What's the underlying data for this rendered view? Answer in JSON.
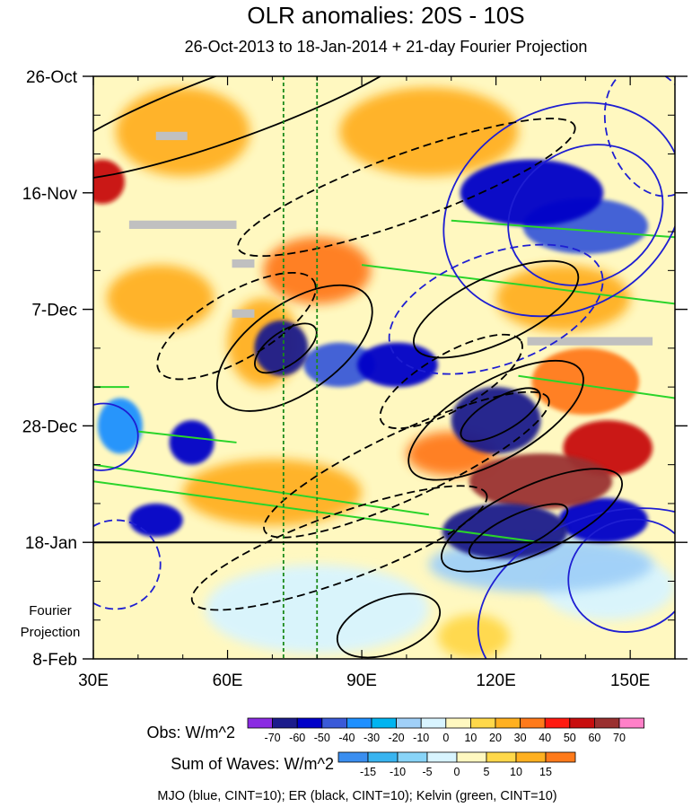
{
  "chart_data": {
    "type": "heatmap",
    "title": "OLR anomalies: 20S - 10S",
    "subtitle": "26-Oct-2013 to 18-Jan-2014 + 21-day Fourier Projection",
    "x_axis": {
      "range": [
        30,
        160
      ],
      "unit": "longitude (degrees E)",
      "ticks": [
        30,
        60,
        90,
        120,
        150
      ],
      "tick_labels": [
        "30E",
        "60E",
        "90E",
        "120E",
        "150E"
      ]
    },
    "y_axis": {
      "range_days": [
        0,
        105
      ],
      "start": "26-Oct-2013",
      "ticks_days": [
        0,
        21,
        42,
        63,
        84,
        105
      ],
      "tick_labels": [
        "26-Oct",
        "16-Nov",
        "7-Dec",
        "28-Dec",
        "18-Jan",
        "8-Feb"
      ],
      "projection_start_day": 84
    },
    "projection_label_lines": [
      "Fourier",
      "Projection"
    ],
    "reference_longitudes": [
      72.5,
      80
    ],
    "obs_colorbar": {
      "label": "Obs: W/m^2",
      "levels": [
        -70,
        -60,
        -50,
        -40,
        -30,
        -20,
        -10,
        0,
        10,
        20,
        30,
        40,
        50,
        60,
        70
      ],
      "level_labels": [
        "-70",
        "-60",
        "-50",
        "-40",
        "-30",
        "-20",
        "-10",
        "0",
        "10",
        "20",
        "30",
        "40",
        "50",
        "60",
        "70"
      ],
      "colors": [
        "#8a2be2",
        "#1c1c8c",
        "#0000c8",
        "#3a5ad8",
        "#1e90ff",
        "#00b4f0",
        "#a0d0f8",
        "#d8f4ff",
        "#fff8c0",
        "#ffd84a",
        "#ffb020",
        "#ff7a1a",
        "#ff1a10",
        "#c80e0e",
        "#9a3030",
        "#ff80c8"
      ]
    },
    "waves_colorbar": {
      "label": "Sum of Waves: W/m^2",
      "levels": [
        -15,
        -10,
        -5,
        0,
        5,
        10,
        15
      ],
      "level_labels": [
        "-15",
        "-10",
        "-5",
        "0",
        "5",
        "10",
        "15"
      ],
      "colors": [
        "#3a8ef0",
        "#38b4f0",
        "#88d4f8",
        "#d8f4ff",
        "#fff8c0",
        "#ffd84a",
        "#ffb020",
        "#ff7a1a"
      ]
    },
    "contour_legend": "MJO (blue, CINT=10); ER (black, CINT=10); Kelvin (green, CINT=10)",
    "series_colors": {
      "mjo": "#1e1ed2",
      "er": "#000000",
      "kelvin": "#2ad42a"
    },
    "missing_data_color": "#c0c0c0",
    "anomaly_features": [
      {
        "lon": 72,
        "day": 49,
        "value": -70,
        "rx_deg": 6,
        "ry_day": 5
      },
      {
        "lon": 85,
        "day": 52,
        "value": -45,
        "rx_deg": 8,
        "ry_day": 4
      },
      {
        "lon": 98,
        "day": 52,
        "value": -55,
        "rx_deg": 9,
        "ry_day": 4
      },
      {
        "lon": 52,
        "day": 66,
        "value": -60,
        "rx_deg": 5,
        "ry_day": 4
      },
      {
        "lon": 36,
        "day": 63,
        "value": -40,
        "rx_deg": 5,
        "ry_day": 5
      },
      {
        "lon": 120,
        "day": 62,
        "value": -70,
        "rx_deg": 10,
        "ry_day": 6
      },
      {
        "lon": 128,
        "day": 21,
        "value": -60,
        "rx_deg": 16,
        "ry_day": 6
      },
      {
        "lon": 140,
        "day": 27,
        "value": -50,
        "rx_deg": 14,
        "ry_day": 5
      },
      {
        "lon": 122,
        "day": 82,
        "value": -70,
        "rx_deg": 14,
        "ry_day": 5
      },
      {
        "lon": 144,
        "day": 80,
        "value": -55,
        "rx_deg": 10,
        "ry_day": 4
      },
      {
        "lon": 44,
        "day": 80,
        "value": -60,
        "rx_deg": 6,
        "ry_day": 3
      },
      {
        "lon": 130,
        "day": 73,
        "value": 60,
        "rx_deg": 16,
        "ry_day": 5
      },
      {
        "lon": 145,
        "day": 67,
        "value": 50,
        "rx_deg": 10,
        "ry_day": 5
      },
      {
        "lon": 32,
        "day": 19,
        "value": 50,
        "rx_deg": 5,
        "ry_day": 4
      },
      {
        "lon": 80,
        "day": 35,
        "value": 30,
        "rx_deg": 12,
        "ry_day": 6
      },
      {
        "lon": 68,
        "day": 48,
        "value": 25,
        "rx_deg": 8,
        "ry_day": 8
      },
      {
        "lon": 105,
        "day": 10,
        "value": 25,
        "rx_deg": 20,
        "ry_day": 8
      },
      {
        "lon": 50,
        "day": 10,
        "value": 20,
        "rx_deg": 15,
        "ry_day": 8
      },
      {
        "lon": 140,
        "day": 55,
        "value": 35,
        "rx_deg": 12,
        "ry_day": 6
      },
      {
        "lon": 110,
        "day": 68,
        "value": 30,
        "rx_deg": 10,
        "ry_day": 4
      },
      {
        "lon": 70,
        "day": 75,
        "value": 20,
        "rx_deg": 20,
        "ry_day": 6
      },
      {
        "lon": 135,
        "day": 40,
        "value": 25,
        "rx_deg": 15,
        "ry_day": 6
      },
      {
        "lon": 45,
        "day": 40,
        "value": 20,
        "rx_deg": 12,
        "ry_day": 6
      },
      {
        "lon": 130,
        "day": 88,
        "value": -15,
        "rx_deg": 25,
        "ry_day": 5
      },
      {
        "lon": 145,
        "day": 92,
        "value": -10,
        "rx_deg": 15,
        "ry_day": 6
      },
      {
        "lon": 80,
        "day": 96,
        "value": -5,
        "rx_deg": 25,
        "ry_day": 8
      },
      {
        "lon": 115,
        "day": 101,
        "value": 10,
        "rx_deg": 8,
        "ry_day": 4
      }
    ],
    "mjo_contours": [
      {
        "lon": 140,
        "day": 25,
        "rx_deg": 18,
        "ry_day": 12,
        "angle_deg": 30,
        "dashed": false
      },
      {
        "lon": 135,
        "day": 24,
        "rx_deg": 28,
        "ry_day": 18,
        "angle_deg": 30,
        "dashed": false
      },
      {
        "lon": 155,
        "day": 10,
        "rx_deg": 10,
        "ry_day": 12,
        "angle_deg": 20,
        "dashed": true
      },
      {
        "lon": 120,
        "day": 42,
        "rx_deg": 25,
        "ry_day": 10,
        "angle_deg": 20,
        "dashed": true
      },
      {
        "lon": 150,
        "day": 90,
        "rx_deg": 14,
        "ry_day": 10,
        "angle_deg": 20,
        "dashed": false
      },
      {
        "lon": 145,
        "day": 95,
        "rx_deg": 30,
        "ry_day": 16,
        "angle_deg": 20,
        "dashed": false
      },
      {
        "lon": 35,
        "day": 88,
        "rx_deg": 10,
        "ry_day": 8,
        "angle_deg": 20,
        "dashed": true
      },
      {
        "lon": 32,
        "day": 65,
        "rx_deg": 8,
        "ry_day": 6,
        "angle_deg": 10,
        "dashed": false
      }
    ],
    "er_contours": [
      {
        "lon": 62,
        "day": 5,
        "rx_deg": 45,
        "ry_day": 6,
        "angle_deg": 20,
        "dashed": false
      },
      {
        "lon": 75,
        "day": 49,
        "rx_deg": 20,
        "ry_day": 8,
        "angle_deg": 35,
        "dashed": false
      },
      {
        "lon": 73,
        "day": 49,
        "rx_deg": 8,
        "ry_day": 3,
        "angle_deg": 35,
        "dashed": false
      },
      {
        "lon": 62,
        "day": 45,
        "rx_deg": 20,
        "ry_day": 6,
        "angle_deg": 30,
        "dashed": true
      },
      {
        "lon": 120,
        "day": 62,
        "rx_deg": 22,
        "ry_day": 7,
        "angle_deg": 30,
        "dashed": false
      },
      {
        "lon": 121,
        "day": 61,
        "rx_deg": 10,
        "ry_day": 3,
        "angle_deg": 30,
        "dashed": false
      },
      {
        "lon": 128,
        "day": 80,
        "rx_deg": 22,
        "ry_day": 6,
        "angle_deg": 25,
        "dashed": false
      },
      {
        "lon": 125,
        "day": 82,
        "rx_deg": 12,
        "ry_day": 3,
        "angle_deg": 25,
        "dashed": false
      },
      {
        "lon": 100,
        "day": 70,
        "rx_deg": 35,
        "ry_day": 6,
        "angle_deg": 25,
        "dashed": true
      },
      {
        "lon": 85,
        "day": 85,
        "rx_deg": 35,
        "ry_day": 6,
        "angle_deg": 20,
        "dashed": true
      },
      {
        "lon": 120,
        "day": 42,
        "rx_deg": 20,
        "ry_day": 6,
        "angle_deg": 25,
        "dashed": false
      },
      {
        "lon": 100,
        "day": 20,
        "rx_deg": 40,
        "ry_day": 6,
        "angle_deg": 20,
        "dashed": true
      },
      {
        "lon": 110,
        "day": 55,
        "rx_deg": 18,
        "ry_day": 5,
        "angle_deg": 30,
        "dashed": true
      },
      {
        "lon": 96,
        "day": 99,
        "rx_deg": 12,
        "ry_day": 5,
        "angle_deg": 20,
        "dashed": false
      }
    ],
    "kelvin_segments": [
      {
        "lon": [
          30,
          105
        ],
        "day": [
          70,
          79
        ]
      },
      {
        "lon": [
          30,
          130
        ],
        "day": [
          73,
          84
        ]
      },
      {
        "lon": [
          90,
          160
        ],
        "day": [
          34,
          41
        ]
      },
      {
        "lon": [
          110,
          160
        ],
        "day": [
          26,
          29
        ]
      },
      {
        "lon": [
          125,
          160
        ],
        "day": [
          54,
          58
        ]
      },
      {
        "lon": [
          40,
          62
        ],
        "day": [
          64,
          66
        ]
      },
      {
        "lon": [
          30,
          38
        ],
        "day": [
          56,
          56
        ]
      }
    ],
    "missing_data_boxes": [
      {
        "lon": [
          44,
          51
        ],
        "day": [
          10,
          11.5
        ]
      },
      {
        "lon": [
          38,
          62
        ],
        "day": [
          26,
          27.5
        ]
      },
      {
        "lon": [
          61,
          66
        ],
        "day": [
          33,
          34.5
        ]
      },
      {
        "lon": [
          61,
          66
        ],
        "day": [
          42,
          43.5
        ]
      },
      {
        "lon": [
          127,
          155
        ],
        "day": [
          47,
          48.5
        ]
      }
    ]
  }
}
